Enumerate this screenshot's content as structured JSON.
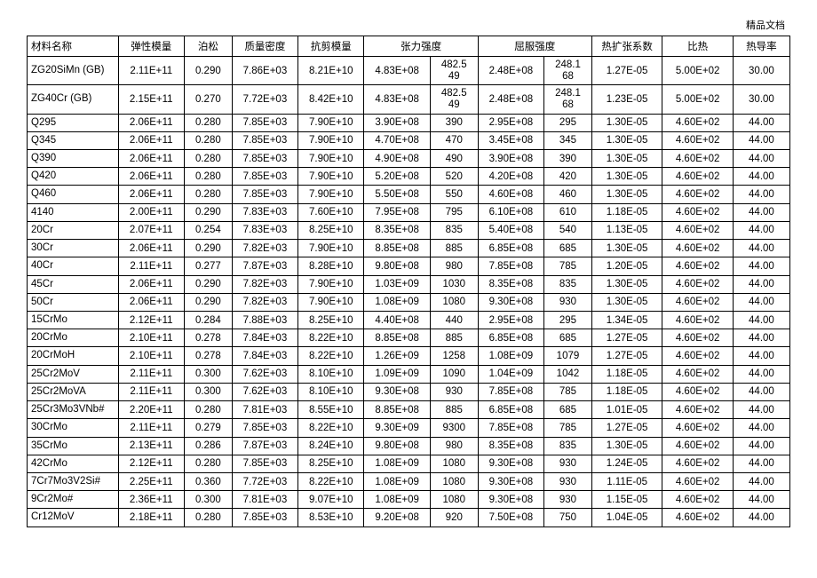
{
  "topmark": "精品文档",
  "headers": {
    "name": "材料名称",
    "elastic": "弹性模量",
    "poisson": "泊松",
    "density": "质量密度",
    "shear": "抗剪模量",
    "tensile_group": "张力强度",
    "yield_group": "屈服强度",
    "thermal_exp": "热扩张系数",
    "specific_heat": "比热",
    "thermal_cond": "热导率"
  },
  "col_widths": [
    "80",
    "58",
    "42",
    "58",
    "58",
    "58",
    "42",
    "58",
    "42",
    "62",
    "62",
    "50"
  ],
  "rows": [
    {
      "name": "ZG20SiMn (GB)",
      "c": [
        "2.11E+11",
        "0.290",
        "7.86E+03",
        "8.21E+10",
        "4.83E+08",
        "482.549",
        "2.48E+08",
        "248.168",
        "1.27E-05",
        "5.00E+02",
        "30.00"
      ],
      "wrap": [
        5,
        7
      ]
    },
    {
      "name": "ZG40Cr (GB)",
      "c": [
        "2.15E+11",
        "0.270",
        "7.72E+03",
        "8.42E+10",
        "4.83E+08",
        "482.549",
        "2.48E+08",
        "248.168",
        "1.23E-05",
        "5.00E+02",
        "30.00"
      ],
      "wrap": [
        5,
        7
      ]
    },
    {
      "name": "Q295",
      "c": [
        "2.06E+11",
        "0.280",
        "7.85E+03",
        "7.90E+10",
        "3.90E+08",
        "390",
        "2.95E+08",
        "295",
        "1.30E-05",
        "4.60E+02",
        "44.00"
      ]
    },
    {
      "name": "Q345",
      "c": [
        "2.06E+11",
        "0.280",
        "7.85E+03",
        "7.90E+10",
        "4.70E+08",
        "470",
        "3.45E+08",
        "345",
        "1.30E-05",
        "4.60E+02",
        "44.00"
      ]
    },
    {
      "name": "Q390",
      "c": [
        "2.06E+11",
        "0.280",
        "7.85E+03",
        "7.90E+10",
        "4.90E+08",
        "490",
        "3.90E+08",
        "390",
        "1.30E-05",
        "4.60E+02",
        "44.00"
      ]
    },
    {
      "name": "Q420",
      "c": [
        "2.06E+11",
        "0.280",
        "7.85E+03",
        "7.90E+10",
        "5.20E+08",
        "520",
        "4.20E+08",
        "420",
        "1.30E-05",
        "4.60E+02",
        "44.00"
      ]
    },
    {
      "name": "Q460",
      "c": [
        "2.06E+11",
        "0.280",
        "7.85E+03",
        "7.90E+10",
        "5.50E+08",
        "550",
        "4.60E+08",
        "460",
        "1.30E-05",
        "4.60E+02",
        "44.00"
      ]
    },
    {
      "name": "4140",
      "c": [
        "2.00E+11",
        "0.290",
        "7.83E+03",
        "7.60E+10",
        "7.95E+08",
        "795",
        "6.10E+08",
        "610",
        "1.18E-05",
        "4.60E+02",
        "44.00"
      ]
    },
    {
      "name": "20Cr",
      "c": [
        "2.07E+11",
        "0.254",
        "7.83E+03",
        "8.25E+10",
        "8.35E+08",
        "835",
        "5.40E+08",
        "540",
        "1.13E-05",
        "4.60E+02",
        "44.00"
      ]
    },
    {
      "name": "30Cr",
      "c": [
        "2.06E+11",
        "0.290",
        "7.82E+03",
        "7.90E+10",
        "8.85E+08",
        "885",
        "6.85E+08",
        "685",
        "1.30E-05",
        "4.60E+02",
        "44.00"
      ]
    },
    {
      "name": "40Cr",
      "c": [
        "2.11E+11",
        "0.277",
        "7.87E+03",
        "8.28E+10",
        "9.80E+08",
        "980",
        "7.85E+08",
        "785",
        "1.20E-05",
        "4.60E+02",
        "44.00"
      ]
    },
    {
      "name": "45Cr",
      "c": [
        "2.06E+11",
        "0.290",
        "7.82E+03",
        "7.90E+10",
        "1.03E+09",
        "1030",
        "8.35E+08",
        "835",
        "1.30E-05",
        "4.60E+02",
        "44.00"
      ]
    },
    {
      "name": "50Cr",
      "c": [
        "2.06E+11",
        "0.290",
        "7.82E+03",
        "7.90E+10",
        "1.08E+09",
        "1080",
        "9.30E+08",
        "930",
        "1.30E-05",
        "4.60E+02",
        "44.00"
      ]
    },
    {
      "name": "15CrMo",
      "c": [
        "2.12E+11",
        "0.284",
        "7.88E+03",
        "8.25E+10",
        "4.40E+08",
        "440",
        "2.95E+08",
        "295",
        "1.34E-05",
        "4.60E+02",
        "44.00"
      ]
    },
    {
      "name": "20CrMo",
      "c": [
        "2.10E+11",
        "0.278",
        "7.84E+03",
        "8.22E+10",
        "8.85E+08",
        "885",
        "6.85E+08",
        "685",
        "1.27E-05",
        "4.60E+02",
        "44.00"
      ]
    },
    {
      "name": "20CrMoH",
      "c": [
        "2.10E+11",
        "0.278",
        "7.84E+03",
        "8.22E+10",
        "1.26E+09",
        "1258",
        "1.08E+09",
        "1079",
        "1.27E-05",
        "4.60E+02",
        "44.00"
      ]
    },
    {
      "name": "25Cr2MoV",
      "c": [
        "2.11E+11",
        "0.300",
        "7.62E+03",
        "8.10E+10",
        "1.09E+09",
        "1090",
        "1.04E+09",
        "1042",
        "1.18E-05",
        "4.60E+02",
        "44.00"
      ]
    },
    {
      "name": "25Cr2MoVA",
      "c": [
        "2.11E+11",
        "0.300",
        "7.62E+03",
        "8.10E+10",
        "9.30E+08",
        "930",
        "7.85E+08",
        "785",
        "1.18E-05",
        "4.60E+02",
        "44.00"
      ]
    },
    {
      "name": "25Cr3Mo3VNb#",
      "c": [
        "2.20E+11",
        "0.280",
        "7.81E+03",
        "8.55E+10",
        "8.85E+08",
        "885",
        "6.85E+08",
        "685",
        "1.01E-05",
        "4.60E+02",
        "44.00"
      ]
    },
    {
      "name": "30CrMo",
      "c": [
        "2.11E+11",
        "0.279",
        "7.85E+03",
        "8.22E+10",
        "9.30E+09",
        "9300",
        "7.85E+08",
        "785",
        "1.27E-05",
        "4.60E+02",
        "44.00"
      ]
    },
    {
      "name": "35CrMo",
      "c": [
        "2.13E+11",
        "0.286",
        "7.87E+03",
        "8.24E+10",
        "9.80E+08",
        "980",
        "8.35E+08",
        "835",
        "1.30E-05",
        "4.60E+02",
        "44.00"
      ]
    },
    {
      "name": "42CrMo",
      "c": [
        "2.12E+11",
        "0.280",
        "7.85E+03",
        "8.25E+10",
        "1.08E+09",
        "1080",
        "9.30E+08",
        "930",
        "1.24E-05",
        "4.60E+02",
        "44.00"
      ]
    },
    {
      "name": "7Cr7Mo3V2Si#",
      "c": [
        "2.25E+11",
        "0.360",
        "7.72E+03",
        "8.22E+10",
        "1.08E+09",
        "1080",
        "9.30E+08",
        "930",
        "1.11E-05",
        "4.60E+02",
        "44.00"
      ]
    },
    {
      "name": "9Cr2Mo#",
      "c": [
        "2.36E+11",
        "0.300",
        "7.81E+03",
        "9.07E+10",
        "1.08E+09",
        "1080",
        "9.30E+08",
        "930",
        "1.15E-05",
        "4.60E+02",
        "44.00"
      ]
    },
    {
      "name": "Cr12MoV",
      "c": [
        "2.18E+11",
        "0.280",
        "7.85E+03",
        "8.53E+10",
        "9.20E+08",
        "920",
        "7.50E+08",
        "750",
        "1.04E-05",
        "4.60E+02",
        "44.00"
      ]
    }
  ]
}
